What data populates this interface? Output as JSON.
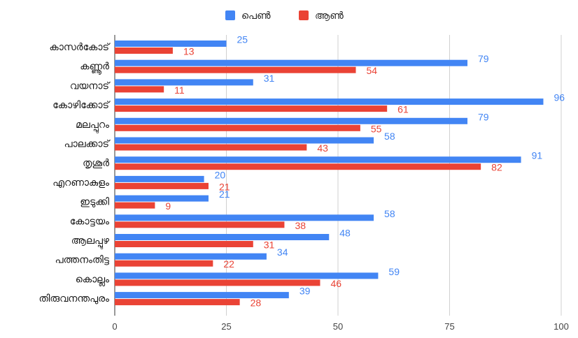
{
  "chart_data": {
    "type": "bar",
    "orientation": "horizontal",
    "categories": [
      "കാസർകോട്",
      "കണ്ണൂർ",
      "വയനാട്",
      "കോഴിക്കോട്",
      "മലപ്പുറം",
      "പാലക്കാട്",
      "തൃശൂർ",
      "എറണാകുളം",
      "ഇടുക്കി",
      "കോട്ടയം",
      "ആലപ്പുഴ",
      "പത്തനംതിട്ട",
      "കൊല്ലം",
      "തിരുവനന്തപുരം"
    ],
    "series": [
      {
        "name": "പെൺ",
        "color": "#4285f4",
        "values": [
          25,
          79,
          31,
          96,
          79,
          58,
          91,
          20,
          21,
          58,
          48,
          34,
          59,
          39
        ]
      },
      {
        "name": "ആൺ",
        "color": "#ea4335",
        "values": [
          13,
          54,
          11,
          61,
          55,
          43,
          82,
          21,
          9,
          38,
          31,
          22,
          46,
          28
        ]
      }
    ],
    "x_ticks": [
      "0",
      "25",
      "50",
      "75",
      "100"
    ],
    "xlim": [
      0,
      100
    ],
    "grid": true,
    "legend_position": "top-center",
    "data_labels": true
  }
}
